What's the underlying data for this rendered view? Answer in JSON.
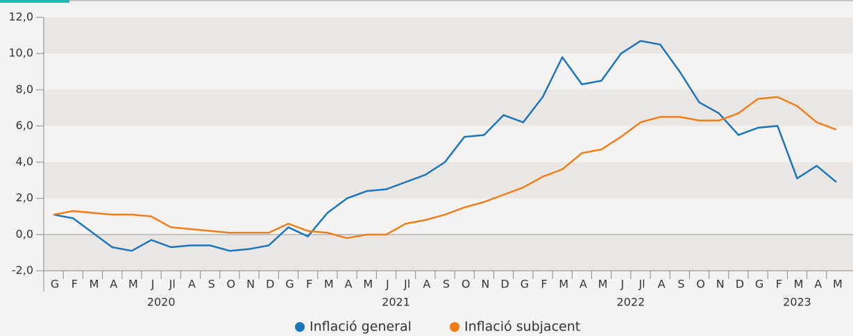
{
  "chart_data": {
    "type": "line",
    "categories": [
      "G",
      "F",
      "M",
      "A",
      "M",
      "J",
      "Jl",
      "A",
      "S",
      "O",
      "N",
      "D",
      "G",
      "F",
      "M",
      "A",
      "M",
      "J",
      "Jl",
      "A",
      "S",
      "O",
      "N",
      "D",
      "G",
      "F",
      "M",
      "A",
      "M",
      "J",
      "Jl",
      "A",
      "S",
      "O",
      "N",
      "D",
      "G",
      "F",
      "M",
      "A",
      "M"
    ],
    "year_labels": [
      "2020",
      "2021",
      "2022",
      "2023"
    ],
    "series": [
      {
        "name": "Inflació general",
        "color": "#1b75bb",
        "values": [
          1.1,
          0.9,
          0.1,
          -0.7,
          -0.9,
          -0.3,
          -0.7,
          -0.6,
          -0.6,
          -0.9,
          -0.8,
          -0.6,
          0.4,
          -0.1,
          1.2,
          2.0,
          2.4,
          2.5,
          2.9,
          3.3,
          4.0,
          5.4,
          5.5,
          6.6,
          6.2,
          7.6,
          9.8,
          8.3,
          8.5,
          10.0,
          10.7,
          10.5,
          9.0,
          7.3,
          6.7,
          5.5,
          5.9,
          6.0,
          3.1,
          3.8,
          2.9
        ]
      },
      {
        "name": "Inflació subjacent",
        "color": "#ee7d1a",
        "values": [
          1.1,
          1.3,
          1.2,
          1.1,
          1.1,
          1.0,
          0.4,
          0.3,
          0.2,
          0.1,
          0.1,
          0.1,
          0.6,
          0.2,
          0.1,
          -0.2,
          0.0,
          0.0,
          0.6,
          0.8,
          1.1,
          1.5,
          1.8,
          2.2,
          2.6,
          3.2,
          3.6,
          4.5,
          4.7,
          5.4,
          6.2,
          6.5,
          6.5,
          6.3,
          6.3,
          6.7,
          7.5,
          7.6,
          7.1,
          6.2,
          5.8
        ]
      }
    ],
    "ylim": [
      -2,
      12
    ],
    "yticks": [
      {
        "value": 12,
        "label": "12,0"
      },
      {
        "value": 10,
        "label": "10,0"
      },
      {
        "value": 8,
        "label": "8,0"
      },
      {
        "value": 6,
        "label": "6,0"
      },
      {
        "value": 4,
        "label": "4,0"
      },
      {
        "value": 2,
        "label": "2,0"
      },
      {
        "value": 0,
        "label": "0,0"
      },
      {
        "value": -2,
        "label": "-2,0"
      }
    ],
    "legend": "bottom"
  }
}
